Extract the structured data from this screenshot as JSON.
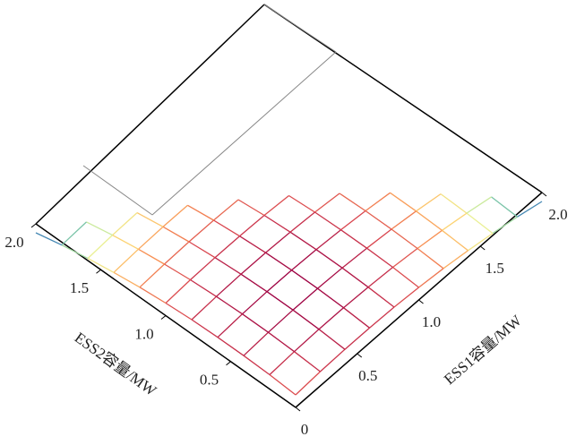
{
  "chart_data": {
    "type": "surface3d",
    "xlabel": "ESS1容量/MW",
    "ylabel": "ESS2容量/MW",
    "x": [
      0,
      0.2,
      0.4,
      0.6,
      0.8,
      1,
      1.2,
      1.4,
      1.6,
      1.8,
      2
    ],
    "y": [
      0,
      0.2,
      0.4,
      0.6,
      0.8,
      1,
      1.2,
      1.4,
      1.6,
      1.8,
      2
    ],
    "z": [
      [
        7,
        8,
        8.4,
        8.4,
        8,
        7,
        5.6,
        3.6,
        1.2,
        -1.6,
        -5
      ],
      [
        8,
        8.9,
        9.4,
        9.4,
        8.9,
        8,
        6.5,
        4.6,
        2.2,
        -0.7,
        null
      ],
      [
        8.4,
        9.4,
        9.9,
        9.9,
        9.4,
        8.4,
        7,
        5.1,
        2.7,
        null,
        null
      ],
      [
        8.4,
        9.4,
        9.9,
        9.9,
        9.4,
        8.4,
        7,
        5.1,
        null,
        null,
        null
      ],
      [
        8,
        8.9,
        9.4,
        9.4,
        8.9,
        8,
        6.5,
        null,
        null,
        null,
        null
      ],
      [
        7,
        8,
        8.4,
        8.4,
        8,
        7,
        null,
        null,
        null,
        null,
        null
      ],
      [
        5.6,
        6.5,
        7,
        7,
        6.5,
        null,
        null,
        null,
        null,
        null,
        null
      ],
      [
        3.6,
        4.6,
        5.1,
        5.1,
        null,
        null,
        null,
        null,
        null,
        null,
        null
      ],
      [
        1.2,
        2.2,
        2.7,
        null,
        null,
        null,
        null,
        null,
        null,
        null,
        null
      ],
      [
        -1.6,
        -0.7,
        null,
        null,
        null,
        null,
        null,
        null,
        null,
        null,
        null
      ],
      [
        -5,
        null,
        null,
        null,
        null,
        null,
        null,
        null,
        null,
        null,
        null
      ]
    ],
    "xlim": [
      0,
      2
    ],
    "ylim": [
      0,
      2
    ],
    "xticks": [
      0,
      0.5,
      {
        "value": 1,
        "label": "1.0"
      },
      1.5,
      {
        "value": 2,
        "label": "2.0"
      }
    ],
    "yticks": [
      0.5,
      {
        "value": 1,
        "label": "1.0"
      },
      1.5,
      {
        "value": 2,
        "label": "2.0"
      }
    ],
    "colormap": [
      "#5e4fa2",
      "#3f96b7",
      "#88cfa4",
      "#e7f59a",
      "#fdd170",
      "#f88d52",
      "#d8434e",
      "#9e0142"
    ]
  }
}
